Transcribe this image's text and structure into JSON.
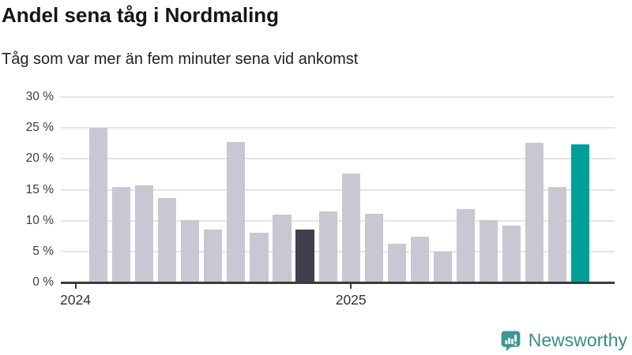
{
  "header": {
    "title": "Andel sena tåg i Nordmaling",
    "subtitle": "Tåg som var mer än fem minuter sena vid ankomst"
  },
  "chart_data": {
    "type": "bar",
    "title": "Andel sena tåg i Nordmaling",
    "subtitle": "Tåg som var mer än fem minuter sena vid ankomst",
    "unit": "%",
    "x": [
      "2024-02",
      "2024-03",
      "2024-04",
      "2024-05",
      "2024-06",
      "2024-07",
      "2024-08",
      "2024-09",
      "2024-10",
      "2024-11",
      "2024-12",
      "2025-01",
      "2025-02",
      "2025-03",
      "2025-04",
      "2025-05",
      "2025-06",
      "2025-07",
      "2025-08",
      "2025-09",
      "2025-10",
      "2025-11"
    ],
    "values": [
      25.0,
      15.4,
      15.7,
      13.7,
      10.1,
      8.5,
      22.7,
      8.0,
      11.0,
      8.6,
      11.5,
      17.6,
      11.1,
      6.2,
      7.4,
      5.0,
      11.9,
      10.1,
      9.2,
      22.6,
      15.5,
      22.4
    ],
    "ylim": [
      0,
      30
    ],
    "yticks": [
      {
        "value": 0,
        "label": "0 %"
      },
      {
        "value": 5,
        "label": "5 %"
      },
      {
        "value": 10,
        "label": "10 %"
      },
      {
        "value": 15,
        "label": "15 %"
      },
      {
        "value": 20,
        "label": "20 %"
      },
      {
        "value": 25,
        "label": "25 %"
      },
      {
        "value": 30,
        "label": "30 %"
      }
    ],
    "x_ticks": [
      {
        "label": "2024",
        "bar_index": -1
      },
      {
        "label": "2025",
        "bar_index": 11
      }
    ],
    "highlights": {
      "dark_bar_index": 9,
      "accent_bar_index": 21
    },
    "colors": {
      "bar_default": "#c9c7d2",
      "bar_dark": "#403f4e",
      "bar_accent": "#00a099",
      "gridline": "#e4e4e8",
      "axis": "#3b3b3b"
    },
    "grid": true,
    "legend": "none"
  },
  "footer": {
    "brand": "Newsworthy",
    "brand_color": "#3a8c88",
    "logo_icon": "newsworthy-speech-bubble-chart-icon"
  }
}
